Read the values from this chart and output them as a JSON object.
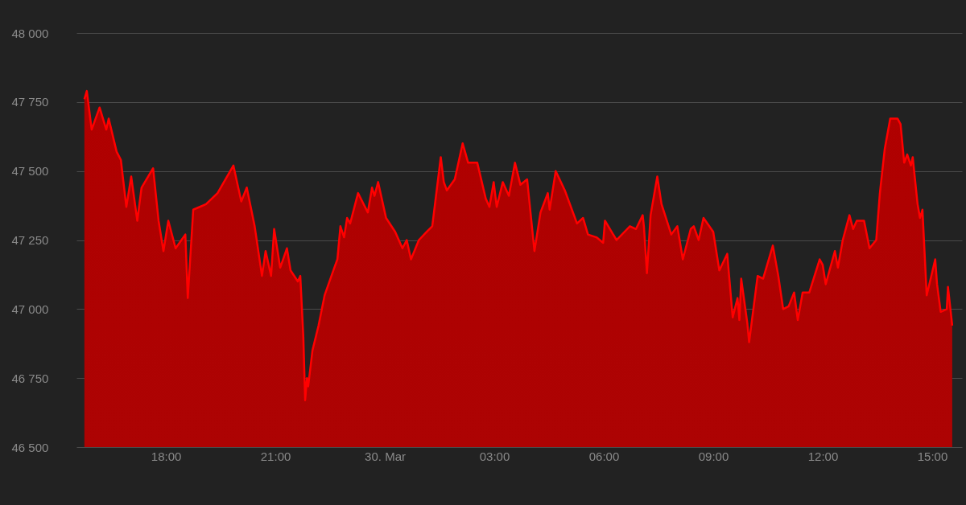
{
  "chart_data": {
    "type": "area",
    "x": [
      "--03-29T15:46",
      "--03-29T15:50",
      "--03-29T15:58",
      "--03-29T16:11",
      "--03-29T16:22",
      "--03-29T16:26",
      "--03-29T16:39",
      "--03-29T16:46",
      "--03-29T16:55",
      "--03-29T17:03",
      "--03-29T17:13",
      "--03-29T17:20",
      "--03-29T17:39",
      "--03-29T17:48",
      "--03-29T17:56",
      "--03-29T18:04",
      "--03-29T18:16",
      "--03-29T18:32",
      "--03-29T18:36",
      "--03-29T18:45",
      "--03-29T19:06",
      "--03-29T19:25",
      "--03-29T19:51",
      "--03-29T20:04",
      "--03-29T20:13",
      "--03-29T20:26",
      "--03-29T20:38",
      "--03-29T20:44",
      "--03-29T20:53",
      "--03-29T20:58",
      "--03-29T21:08",
      "--03-29T21:19",
      "--03-29T21:25",
      "--03-29T21:37",
      "--03-29T21:41",
      "--03-29T21:46",
      "--03-29T21:49",
      "--03-29T21:52",
      "--03-29T21:54",
      "--03-29T22:01",
      "--03-29T22:11",
      "--03-29T22:21",
      "--03-29T22:37",
      "--03-29T22:42",
      "--03-29T22:47",
      "--03-29T22:53",
      "--03-29T22:58",
      "--03-29T23:03",
      "--03-29T23:16",
      "--03-29T23:32",
      "--03-29T23:39",
      "--03-29T23:43",
      "--03-29T23:49",
      "--03-30T00:02",
      "--03-30T00:17",
      "--03-30T00:29",
      "--03-30T00:36",
      "--03-30T00:43",
      "--03-30T00:56",
      "--03-30T01:09",
      "--03-30T01:18",
      "--03-30T01:32",
      "--03-30T01:37",
      "--03-30T01:42",
      "--03-30T01:55",
      "--03-30T02:08",
      "--03-30T02:17",
      "--03-30T02:32",
      "--03-30T02:46",
      "--03-30T02:52",
      "--03-30T02:59",
      "--03-30T03:04",
      "--03-30T03:14",
      "--03-30T03:24",
      "--03-30T03:34",
      "--03-30T03:43",
      "--03-30T03:54",
      "--03-30T04:06",
      "--03-30T04:16",
      "--03-30T04:28",
      "--03-30T04:31",
      "--03-30T04:41",
      "--03-30T04:56",
      "--03-30T05:16",
      "--03-30T05:26",
      "--03-30T05:34",
      "--03-30T05:48",
      "--03-30T05:59",
      "--03-30T06:02",
      "--03-30T06:21",
      "--03-30T06:43",
      "--03-30T06:53",
      "--03-30T07:04",
      "--03-30T07:06",
      "--03-30T07:11",
      "--03-30T07:17",
      "--03-30T07:28",
      "--03-30T07:35",
      "--03-30T07:51",
      "--03-30T08:01",
      "--03-30T08:10",
      "--03-30T08:23",
      "--03-30T08:28",
      "--03-30T08:36",
      "--03-30T08:44",
      "--03-30T09:00",
      "--03-30T09:10",
      "--03-30T09:23",
      "--03-30T09:32",
      "--03-30T09:40",
      "--03-30T09:43",
      "--03-30T09:46",
      "--03-30T09:56",
      "--03-30T09:59",
      "--03-30T10:13",
      "--03-30T10:22",
      "--03-30T10:38",
      "--03-30T10:47",
      "--03-30T10:55",
      "--03-30T11:04",
      "--03-30T11:13",
      "--03-30T11:19",
      "--03-30T11:27",
      "--03-30T11:38",
      "--03-30T11:55",
      "--03-30T12:00",
      "--03-30T12:05",
      "--03-30T12:20",
      "--03-30T12:25",
      "--03-30T12:33",
      "--03-30T12:44",
      "--03-30T12:50",
      "--03-30T12:56",
      "--03-30T13:08",
      "--03-30T13:17",
      "--03-30T13:28",
      "--03-30T13:34",
      "--03-30T13:42",
      "--03-30T13:51",
      "--03-30T14:03",
      "--03-30T14:08",
      "--03-30T14:14",
      "--03-30T14:19",
      "--03-30T14:25",
      "--03-30T14:28",
      "--03-30T14:36",
      "--03-30T14:40",
      "--03-30T14:44",
      "--03-30T14:51",
      "--03-30T15:05",
      "--03-30T15:08",
      "--03-30T15:14",
      "--03-30T15:24",
      "--03-30T15:26",
      "--03-30T15:33"
    ],
    "series": [
      {
        "color": "#ff0000",
        "values": [
          47760,
          47790,
          47650,
          47730,
          47650,
          47690,
          47570,
          47540,
          47370,
          47480,
          47320,
          47440,
          47510,
          47320,
          47210,
          47320,
          47220,
          47270,
          47040,
          47360,
          47380,
          47420,
          47520,
          47390,
          47440,
          47300,
          47120,
          47210,
          47120,
          47290,
          47150,
          47220,
          47140,
          47100,
          47120,
          46900,
          46670,
          46750,
          46720,
          46850,
          46940,
          47050,
          47150,
          47180,
          47300,
          47260,
          47330,
          47310,
          47420,
          47350,
          47440,
          47410,
          47460,
          47330,
          47280,
          47220,
          47250,
          47180,
          47250,
          47280,
          47300,
          47550,
          47460,
          47430,
          47470,
          47600,
          47530,
          47530,
          47400,
          47370,
          47460,
          47370,
          47460,
          47410,
          47530,
          47450,
          47470,
          47210,
          47350,
          47420,
          47360,
          47500,
          47430,
          47310,
          47330,
          47270,
          47260,
          47240,
          47320,
          47250,
          47300,
          47290,
          47340,
          47300,
          47130,
          47340,
          47480,
          47380,
          47270,
          47300,
          47180,
          47290,
          47300,
          47250,
          47330,
          47280,
          47140,
          47200,
          46970,
          47040,
          46960,
          47110,
          46950,
          46880,
          47120,
          47110,
          47230,
          47120,
          47000,
          47010,
          47060,
          46960,
          47060,
          47060,
          47180,
          47160,
          47090,
          47210,
          47150,
          47250,
          47340,
          47290,
          47320,
          47320,
          47220,
          47250,
          47420,
          47580,
          47690,
          47690,
          47670,
          47530,
          47560,
          47520,
          47550,
          47380,
          47330,
          47360,
          47050,
          47180,
          47090,
          46990,
          47000,
          47080,
          46940
        ]
      }
    ],
    "xlim": [
      "--03-29T15:33",
      "--03-30T15:49"
    ],
    "xticks": [
      {
        "value": "--03-29T18:00",
        "label": "18:00"
      },
      {
        "value": "--03-29T21:00",
        "label": "21:00"
      },
      {
        "value": "--03-30T00:00",
        "label": "30. Mar"
      },
      {
        "value": "--03-30T03:00",
        "label": "03:00"
      },
      {
        "value": "--03-30T06:00",
        "label": "06:00"
      },
      {
        "value": "--03-30T09:00",
        "label": "09:00"
      },
      {
        "value": "--03-30T12:00",
        "label": "12:00"
      },
      {
        "value": "--03-30T15:00",
        "label": "15:00"
      }
    ],
    "ylim": [
      46500,
      48000
    ],
    "yticks": [
      {
        "value": 46500,
        "label": "46 500"
      },
      {
        "value": 46750,
        "label": "46 750"
      },
      {
        "value": 47000,
        "label": "47 000"
      },
      {
        "value": 47250,
        "label": "47 250"
      },
      {
        "value": 47500,
        "label": "47 500"
      },
      {
        "value": 47750,
        "label": "47 750"
      },
      {
        "value": 48000,
        "label": "48 000"
      }
    ],
    "grid": "y"
  }
}
